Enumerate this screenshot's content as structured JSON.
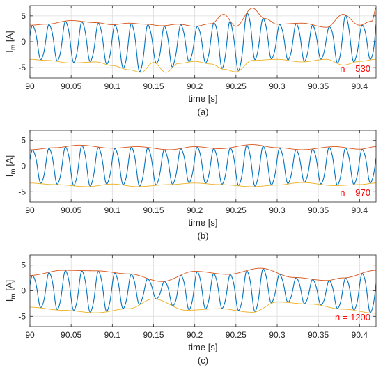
{
  "chart_data": [
    {
      "type": "line",
      "caption": "(a)",
      "xlabel": "time [s]",
      "ylabel": "I_m [A]",
      "xlim": [
        90,
        90.42
      ],
      "ylim": [
        -7,
        7
      ],
      "xticks": [
        "90",
        "90.05",
        "90.1",
        "90.15",
        "90.2",
        "90.25",
        "90.3",
        "90.35",
        "90.4"
      ],
      "yticks": [
        "5",
        "0",
        "-5"
      ],
      "grid": true,
      "annotation": "n = 530",
      "signal": {
        "frequency_hz": 50,
        "amplitude": 3.6
      },
      "upper_envelope": {
        "x": [
          90,
          90.02,
          90.05,
          90.08,
          90.1,
          90.12,
          90.14,
          90.16,
          90.18,
          90.2,
          90.22,
          90.235,
          90.25,
          90.27,
          90.285,
          90.3,
          90.33,
          90.36,
          90.38,
          90.4,
          90.415,
          90.42
        ],
        "y": [
          3.2,
          3.4,
          4.1,
          3.7,
          3.3,
          3.6,
          3.4,
          3.1,
          3.4,
          3.0,
          3.5,
          5.3,
          3.0,
          6.5,
          4.5,
          3.4,
          3.6,
          2.8,
          5.3,
          3.2,
          4.0,
          6.5
        ]
      },
      "lower_envelope": {
        "x": [
          90,
          90.02,
          90.05,
          90.08,
          90.1,
          90.12,
          90.135,
          90.15,
          90.165,
          90.18,
          90.2,
          90.22,
          90.235,
          90.25,
          90.27,
          90.3,
          90.33,
          90.36,
          90.38,
          90.4,
          90.42
        ],
        "y": [
          -3.4,
          -3.6,
          -4.1,
          -3.9,
          -4.6,
          -5.4,
          -5.9,
          -4.0,
          -5.9,
          -4.2,
          -3.8,
          -4.3,
          -5.3,
          -5.8,
          -3.6,
          -3.4,
          -3.9,
          -3.4,
          -4.5,
          -3.8,
          -3.4
        ]
      }
    },
    {
      "type": "line",
      "caption": "(b)",
      "xlabel": "time [s]",
      "ylabel": "I_m [A]",
      "xlim": [
        90,
        90.42
      ],
      "ylim": [
        -7,
        7
      ],
      "xticks": [
        "90",
        "90.05",
        "90.1",
        "90.15",
        "90.2",
        "90.25",
        "90.3",
        "90.35",
        "90.4"
      ],
      "yticks": [
        "5",
        "0",
        "-5"
      ],
      "grid": true,
      "annotation": "n = 970",
      "signal": {
        "frequency_hz": 50,
        "amplitude": 3.6
      },
      "upper_envelope": {
        "x": [
          90,
          90.03,
          90.06,
          90.1,
          90.13,
          90.17,
          90.2,
          90.23,
          90.27,
          90.3,
          90.33,
          90.37,
          90.4,
          90.42
        ],
        "y": [
          3.2,
          3.6,
          4.1,
          3.5,
          3.8,
          3.2,
          3.8,
          3.4,
          4.2,
          3.6,
          3.2,
          3.8,
          3.3,
          3.8
        ]
      },
      "lower_envelope": {
        "x": [
          90,
          90.03,
          90.07,
          90.1,
          90.13,
          90.17,
          90.2,
          90.23,
          90.27,
          90.3,
          90.33,
          90.37,
          90.4,
          90.42
        ],
        "y": [
          -3.3,
          -3.6,
          -4.0,
          -3.5,
          -4.0,
          -3.6,
          -3.3,
          -3.6,
          -4.0,
          -3.7,
          -3.2,
          -3.8,
          -3.6,
          -3.3
        ]
      }
    },
    {
      "type": "line",
      "caption": "(c)",
      "xlabel": "time [s]",
      "ylabel": "I_m [A]",
      "xlim": [
        90,
        90.42
      ],
      "ylim": [
        -7,
        7
      ],
      "xticks": [
        "90",
        "90.05",
        "90.1",
        "90.15",
        "90.2",
        "90.25",
        "90.3",
        "90.35",
        "90.4"
      ],
      "yticks": [
        "5",
        "0",
        "-5"
      ],
      "grid": true,
      "annotation": "n = 1200",
      "signal": {
        "frequency_hz": 50,
        "amplitude": 3.6
      },
      "upper_envelope": {
        "x": [
          90,
          90.04,
          90.08,
          90.12,
          90.16,
          90.2,
          90.24,
          90.28,
          90.32,
          90.36,
          90.38,
          90.42
        ],
        "y": [
          3.0,
          4.0,
          3.9,
          3.3,
          1.8,
          3.8,
          3.2,
          4.4,
          2.6,
          2.0,
          2.5,
          4.0
        ]
      },
      "lower_envelope": {
        "x": [
          90,
          90.04,
          90.08,
          90.12,
          90.15,
          90.19,
          90.23,
          90.27,
          90.3,
          90.34,
          90.38,
          90.42
        ],
        "y": [
          -3.2,
          -3.8,
          -4.3,
          -3.5,
          -1.6,
          -3.8,
          -3.5,
          -4.2,
          -2.2,
          -2.6,
          -3.6,
          -4.4
        ]
      }
    }
  ],
  "style": {
    "signal_color": "#0072BD",
    "upper_color": "#D95319",
    "lower_color": "#EDB120",
    "annotation_color": "#FF0000",
    "grid_color": "#DCDCDC"
  }
}
